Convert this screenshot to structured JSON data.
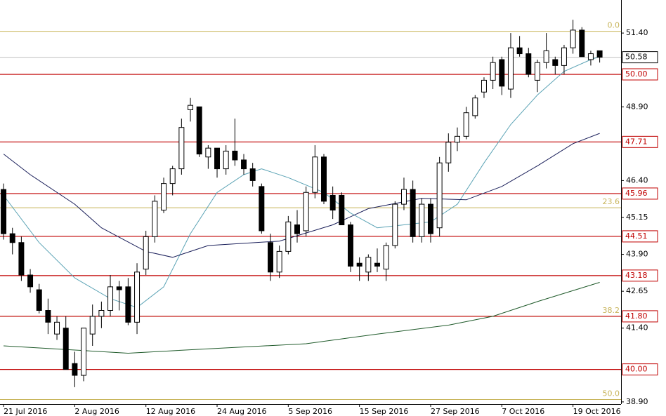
{
  "chart_data": {
    "type": "candlestick",
    "ylim": [
      38.85,
      52.52
    ],
    "xlim": [
      -0.4,
      69.4
    ],
    "yticks": [
      {
        "value": 51.4,
        "label": "51.40"
      },
      {
        "value": 48.9,
        "label": "48.90"
      },
      {
        "value": 46.4,
        "label": "46.40"
      },
      {
        "value": 45.15,
        "label": "45.15"
      },
      {
        "value": 43.9,
        "label": "43.90"
      },
      {
        "value": 42.65,
        "label": "42.65"
      },
      {
        "value": 41.4,
        "label": "41.40"
      },
      {
        "value": 38.9,
        "label": "38.90"
      }
    ],
    "xticks": [
      {
        "value": 0,
        "label": "21 Jul 2016"
      },
      {
        "value": 8,
        "label": "2 Aug 2016"
      },
      {
        "value": 16,
        "label": "12 Aug 2016"
      },
      {
        "value": 24,
        "label": "24 Aug 2016"
      },
      {
        "value": 32,
        "label": "5 Sep 2016"
      },
      {
        "value": 40,
        "label": "15 Sep 2016"
      },
      {
        "value": 48,
        "label": "27 Sep 2016"
      },
      {
        "value": 56,
        "label": "7 Oct 2016"
      },
      {
        "value": 64,
        "label": "19 Oct 2016"
      }
    ],
    "open": [
      46.1,
      44.6,
      44.3,
      43.2,
      42.7,
      42.0,
      41.2,
      41.4,
      40.2,
      39.8,
      41.2,
      41.8,
      42.0,
      42.8,
      42.8,
      41.6,
      43.4,
      44.5,
      45.4,
      46.3,
      46.8,
      48.8,
      48.9,
      47.2,
      47.5,
      46.8,
      47.4,
      47.1,
      46.8,
      46.2,
      44.3,
      43.3,
      44.0,
      44.9,
      44.7,
      46.0,
      47.2,
      45.9,
      45.9,
      44.9,
      43.6,
      43.3,
      43.6,
      43.4,
      44.2,
      45.6,
      46.1,
      44.5,
      45.6,
      44.8,
      47.0,
      47.7,
      47.9,
      48.6,
      49.4,
      49.8,
      50.5,
      49.5,
      50.9,
      50.7,
      49.8,
      50.4,
      50.5,
      50.3,
      50.9,
      51.5,
      50.5,
      50.8
    ],
    "high": [
      46.3,
      44.8,
      44.5,
      43.4,
      42.9,
      42.4,
      41.8,
      41.8,
      40.6,
      41.4,
      42.2,
      42.3,
      43.2,
      43.0,
      43.1,
      43.6,
      44.7,
      45.9,
      46.5,
      46.9,
      48.5,
      49.2,
      48.9,
      47.6,
      47.5,
      47.6,
      48.5,
      47.3,
      47.0,
      46.3,
      44.6,
      44.2,
      45.2,
      45.4,
      46.2,
      47.6,
      47.3,
      46.2,
      46.0,
      45.0,
      43.8,
      43.9,
      44.1,
      44.3,
      45.7,
      46.5,
      46.4,
      45.8,
      45.8,
      47.2,
      48.0,
      48.2,
      48.9,
      49.3,
      49.9,
      50.6,
      50.6,
      51.4,
      51.3,
      50.9,
      50.5,
      51.4,
      50.6,
      51.0,
      51.85,
      51.6,
      50.8,
      50.8
    ],
    "low": [
      44.4,
      43.9,
      43.0,
      42.6,
      41.9,
      41.2,
      41.0,
      40.0,
      39.4,
      39.6,
      40.8,
      41.4,
      41.8,
      42.0,
      41.5,
      41.2,
      43.2,
      44.3,
      45.3,
      45.9,
      46.6,
      48.4,
      47.2,
      46.8,
      46.5,
      46.6,
      46.9,
      46.6,
      46.2,
      44.6,
      43.0,
      43.1,
      43.9,
      44.3,
      44.5,
      45.8,
      45.6,
      45.1,
      44.9,
      43.3,
      43.0,
      43.0,
      43.3,
      43.0,
      44.1,
      45.4,
      44.3,
      44.3,
      44.3,
      44.5,
      46.7,
      47.4,
      47.8,
      48.5,
      49.2,
      49.5,
      49.3,
      49.2,
      50.6,
      49.9,
      49.4,
      50.2,
      50.0,
      50.0,
      50.7,
      50.6,
      50.3,
      50.4
    ],
    "close": [
      44.6,
      44.3,
      43.2,
      42.8,
      42.0,
      41.6,
      41.6,
      40.0,
      39.8,
      41.4,
      41.8,
      42.0,
      42.8,
      42.7,
      41.6,
      43.3,
      44.5,
      45.7,
      46.3,
      46.8,
      48.2,
      48.95,
      47.3,
      47.5,
      46.8,
      47.4,
      47.1,
      46.8,
      46.4,
      44.7,
      43.3,
      44.0,
      45.0,
      44.6,
      46.0,
      47.2,
      45.7,
      45.4,
      44.9,
      43.5,
      43.5,
      43.8,
      43.5,
      44.2,
      45.6,
      46.1,
      44.5,
      45.6,
      44.6,
      47.0,
      47.7,
      47.9,
      48.7,
      49.2,
      49.8,
      50.4,
      49.6,
      50.9,
      50.7,
      50.0,
      50.4,
      50.8,
      50.3,
      50.9,
      51.5,
      50.6,
      50.7,
      50.58
    ],
    "series": [
      {
        "color": "#5ba3b5",
        "x": [
          0,
          4,
          8,
          12,
          15,
          18,
          21,
          24,
          27,
          29,
          32,
          36,
          39,
          42,
          45,
          48,
          51,
          54,
          57,
          60,
          63,
          66,
          67
        ],
        "values": [
          45.9,
          44.3,
          43.1,
          42.4,
          42.1,
          42.8,
          44.6,
          46.0,
          46.6,
          46.8,
          46.5,
          46.0,
          45.3,
          44.8,
          44.9,
          45.0,
          45.6,
          47.0,
          48.3,
          49.3,
          50.1,
          50.5,
          50.6
        ]
      },
      {
        "color": "#1a1f5a",
        "x": [
          0,
          3,
          8,
          11,
          16,
          19,
          23,
          31,
          37,
          41,
          47,
          52,
          56,
          60,
          64,
          67
        ],
        "values": [
          47.3,
          46.6,
          45.6,
          44.8,
          44.0,
          43.8,
          44.2,
          44.35,
          44.9,
          45.45,
          45.8,
          45.75,
          46.2,
          46.9,
          47.65,
          48.0
        ]
      },
      {
        "color": "#1f5a2a",
        "x": [
          0,
          14,
          23,
          34,
          42,
          50,
          55,
          60,
          67
        ],
        "values": [
          40.8,
          40.55,
          40.7,
          40.87,
          41.2,
          41.5,
          41.8,
          42.3,
          42.95
        ]
      }
    ],
    "levels": [
      {
        "value": 50.0,
        "label": "50.00"
      },
      {
        "value": 47.71,
        "label": "47.71"
      },
      {
        "value": 45.96,
        "label": "45.96"
      },
      {
        "value": 44.51,
        "label": "44.51"
      },
      {
        "value": 43.18,
        "label": "43.18"
      },
      {
        "value": 41.8,
        "label": "41.80"
      },
      {
        "value": 40.0,
        "label": "40.00"
      }
    ],
    "fibonacci": [
      {
        "value": 51.46,
        "label": "0.0"
      },
      {
        "value": 45.48,
        "label": "23.6"
      },
      {
        "value": 41.8,
        "label": "38.2"
      },
      {
        "value": 38.98,
        "label": "50.0"
      }
    ],
    "price": 50.58,
    "level_color": "#c00000",
    "fib_color": "#c8b45a"
  }
}
